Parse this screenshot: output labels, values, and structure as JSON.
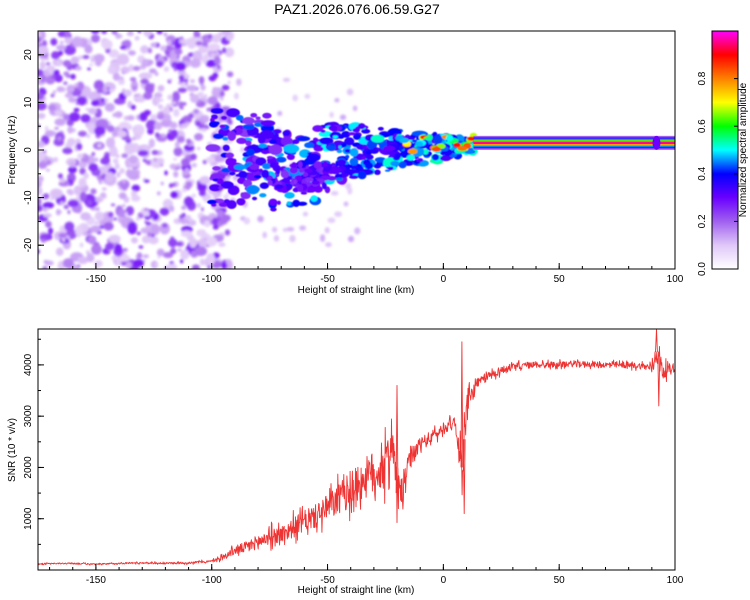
{
  "title": "PAZ1.2026.076.06.59.G27",
  "chart_data": [
    {
      "type": "heatmap",
      "name": "spectrogram",
      "xlabel": "Height of straight line (km)",
      "ylabel": "Frequency (Hz)",
      "xlim": [
        -175,
        100
      ],
      "ylim": [
        -25,
        25
      ],
      "xticks": [
        "-150",
        "-100",
        "-50",
        "0",
        "50",
        "100"
      ],
      "xtick_values": [
        -150,
        -100,
        -50,
        0,
        50,
        100
      ],
      "yticks": [
        "-20",
        "-10",
        "0",
        "10",
        "20"
      ],
      "ytick_values": [
        -20,
        -10,
        0,
        10,
        20
      ],
      "colorbar": {
        "label": "Normalized spectral amplitude",
        "range": [
          0,
          1
        ],
        "ticks": [
          "0.0",
          "0.2",
          "0.4",
          "0.6",
          "0.8"
        ],
        "tick_values": [
          0.0,
          0.2,
          0.4,
          0.6,
          0.8
        ],
        "colormap": [
          "#ffffff",
          "#e0c8f8",
          "#a060f0",
          "#6a00ff",
          "#0000ff",
          "#00ffff",
          "#00ff00",
          "#ffff00",
          "#ff8000",
          "#ff0000",
          "#ff00ff"
        ]
      },
      "features": [
        {
          "label": "tone",
          "height_km": [
            13,
            100
          ],
          "frequency_hz": 1.5,
          "amplitude": 1.0
        },
        {
          "label": "noise",
          "height_km": [
            -175,
            -100
          ],
          "frequency_hz": [
            -25,
            25
          ],
          "amplitude": 0.15
        },
        {
          "label": "scintillation",
          "height_km": [
            -100,
            13
          ],
          "frequency_hz": [
            -12,
            8
          ],
          "amplitude": 0.5
        }
      ]
    },
    {
      "type": "line",
      "name": "snr",
      "xlabel": "Height of straight line (km)",
      "ylabel": "SNR (10 * v/v)",
      "xlim": [
        -175,
        100
      ],
      "ylim": [
        0,
        4700
      ],
      "xticks": [
        "-150",
        "-100",
        "-50",
        "0",
        "50",
        "100"
      ],
      "xtick_values": [
        -150,
        -100,
        -50,
        0,
        50,
        100
      ],
      "yticks": [
        "1000",
        "2000",
        "3000",
        "4000"
      ],
      "ytick_values": [
        1000,
        2000,
        3000,
        4000
      ],
      "color": "#ee3333",
      "series": [
        {
          "name": "SNR",
          "x": [
            -175,
            -160,
            -150,
            -140,
            -130,
            -120,
            -110,
            -100,
            -95,
            -90,
            -85,
            -80,
            -75,
            -70,
            -65,
            -60,
            -55,
            -50,
            -45,
            -40,
            -35,
            -30,
            -25,
            -22,
            -20,
            -18,
            -15,
            -12,
            -10,
            -5,
            0,
            5,
            8,
            10,
            12,
            15,
            20,
            25,
            30,
            35,
            40,
            50,
            60,
            70,
            80,
            85,
            90,
            92,
            95,
            100
          ],
          "y": [
            120,
            130,
            110,
            130,
            140,
            130,
            140,
            170,
            250,
            380,
            450,
            550,
            650,
            700,
            820,
            950,
            1050,
            1200,
            1400,
            1550,
            1750,
            1900,
            2000,
            2600,
            1500,
            1500,
            2100,
            2300,
            2450,
            2600,
            2750,
            2900,
            2000,
            3100,
            3400,
            3650,
            3800,
            3900,
            3950,
            3990,
            4000,
            4010,
            4020,
            4000,
            3990,
            3980,
            3950,
            4250,
            3880,
            3950
          ],
          "noise_amplitude": [
            20,
            25,
            25,
            25,
            30,
            30,
            35,
            40,
            90,
            150,
            200,
            250,
            280,
            300,
            350,
            380,
            420,
            480,
            550,
            650,
            700,
            800,
            800,
            900,
            700,
            600,
            300,
            300,
            250,
            220,
            200,
            180,
            600,
            700,
            300,
            200,
            150,
            140,
            130,
            120,
            110,
            100,
            100,
            100,
            100,
            110,
            150,
            400,
            250,
            150
          ]
        }
      ],
      "annotations": [
        {
          "x": -20,
          "y": 3600
        },
        {
          "x": 8,
          "y": 4450
        },
        {
          "x": 9,
          "y": 1100
        },
        {
          "x": 92,
          "y": 4700
        },
        {
          "x": 93,
          "y": 3200
        }
      ]
    }
  ]
}
